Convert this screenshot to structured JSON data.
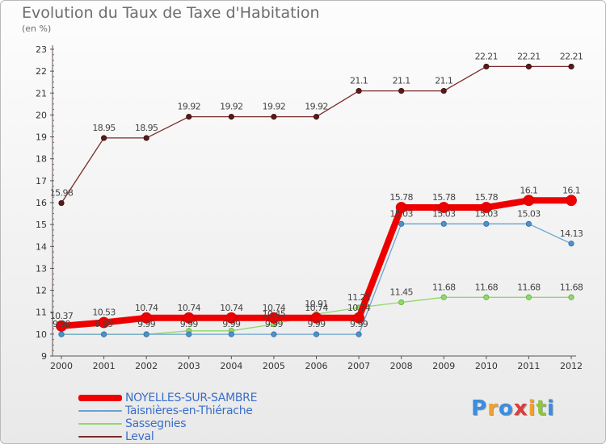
{
  "chart_data": {
    "type": "line",
    "title": "Evolution du Taux de Taxe d'Habitation",
    "subtitle": "(en %)",
    "x": [
      "2000",
      "2001",
      "2002",
      "2003",
      "2004",
      "2005",
      "2006",
      "2007",
      "2008",
      "2009",
      "2010",
      "2011",
      "2012"
    ],
    "ylim": [
      9,
      23
    ],
    "yticks": [
      9,
      10,
      11,
      12,
      13,
      14,
      15,
      16,
      17,
      18,
      19,
      20,
      21,
      22,
      23
    ],
    "grid": false,
    "legend_position": "bottom-left",
    "series": [
      {
        "name": "Leval",
        "color": "#7a2b2b",
        "values": [
          15.98,
          18.95,
          18.95,
          19.92,
          19.92,
          19.92,
          19.92,
          21.1,
          21.1,
          21.1,
          22.21,
          22.21,
          22.21
        ],
        "labels": [
          "15.98",
          "18.95",
          "18.95",
          "19.92",
          "19.92",
          "19.92",
          "19.92",
          "21.1",
          "21.1",
          "21.1",
          "22.21",
          "22.21",
          "22.21"
        ]
      },
      {
        "name": "Sassegnies",
        "color": "#8fd86a",
        "values": [
          9.99,
          9.99,
          9.99,
          10.15,
          10.15,
          10.45,
          10.91,
          11.21,
          11.45,
          11.68,
          11.68,
          11.68,
          11.68
        ],
        "labels": [
          "",
          "",
          "",
          "",
          "",
          "10.45",
          "10.91",
          "11.21",
          "11.45",
          "11.68",
          "11.68",
          "11.68",
          "11.68"
        ]
      },
      {
        "name": "Taisnières-en-Thiérache",
        "color": "#6aa3cf",
        "values": [
          9.99,
          9.99,
          9.99,
          9.99,
          9.99,
          9.99,
          9.99,
          9.99,
          15.03,
          15.03,
          15.03,
          15.03,
          14.13
        ],
        "labels": [
          "9.99",
          "9.99",
          "9.99",
          "9.99",
          "9.99",
          "9.99",
          "9.99",
          "9.99",
          "15.03",
          "15.03",
          "15.03",
          "15.03",
          "14.13"
        ]
      },
      {
        "name": "NOYELLES-SUR-SAMBRE",
        "color": "#ee0000",
        "values": [
          10.37,
          10.53,
          10.74,
          10.74,
          10.74,
          10.74,
          10.74,
          10.74,
          15.78,
          15.78,
          15.78,
          16.1,
          16.1
        ],
        "labels": [
          "10.37",
          "10.53",
          "10.74",
          "10.74",
          "10.74",
          "10.74",
          "10.74",
          "10.74",
          "15.78",
          "15.78",
          "15.78",
          "16.1",
          "16.1"
        ]
      }
    ],
    "legend_order": [
      "NOYELLES-SUR-SAMBRE",
      "Taisnières-en-Thiérache",
      "Sassegnies",
      "Leval"
    ]
  },
  "logo": {
    "letters": [
      "P",
      "r",
      "o",
      "x",
      "i",
      "t",
      "i"
    ],
    "colors": [
      "#3a8ee0",
      "#f0a030",
      "#3a8ee0",
      "#e03a3a",
      "#f0a030",
      "#8cc63f",
      "#3a8ee0"
    ]
  }
}
